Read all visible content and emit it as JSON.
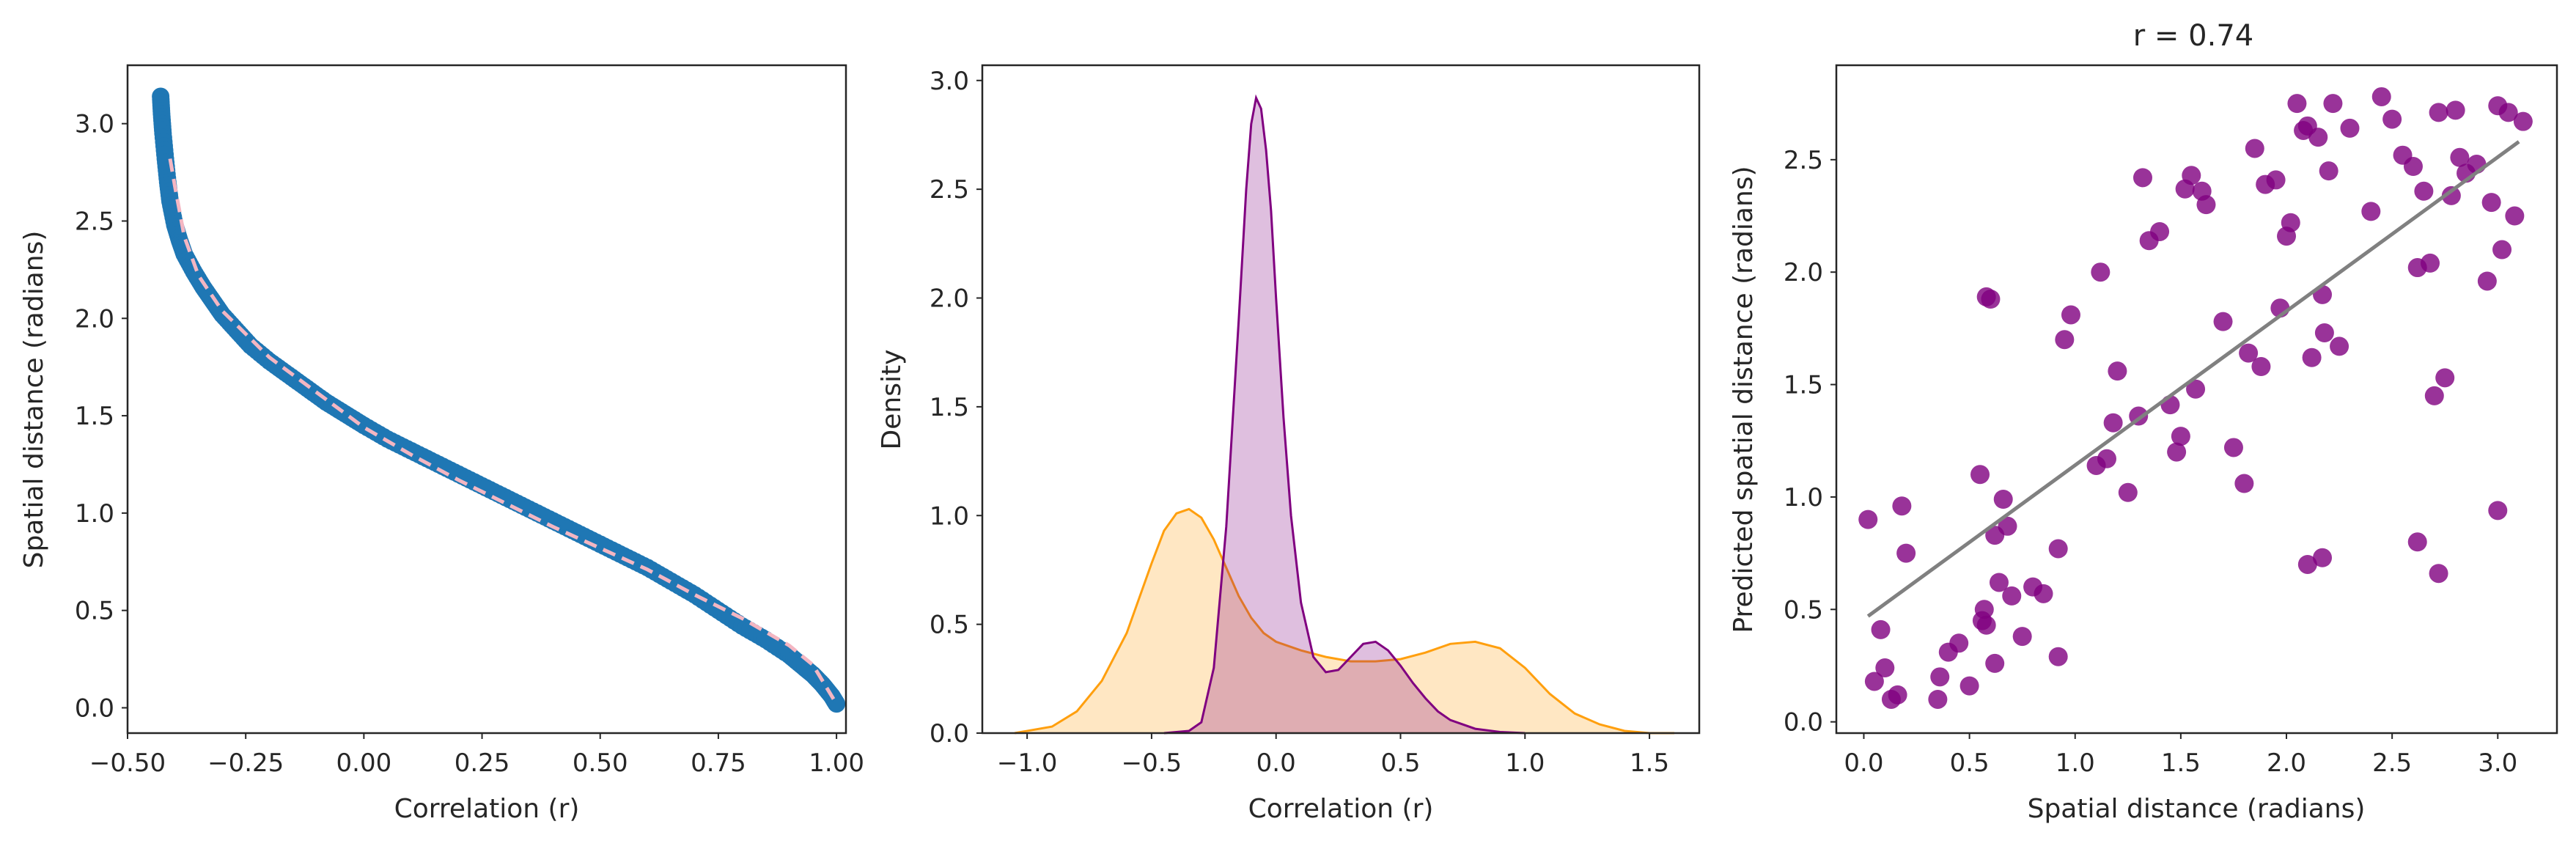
{
  "chart_data": [
    {
      "type": "scatter",
      "title": "",
      "xlabel": "Correlation (r)",
      "ylabel": "Spatial distance (radians)",
      "xlim": [
        -0.5,
        1.02
      ],
      "ylim": [
        -0.13,
        3.3
      ],
      "xticks": [
        -0.5,
        -0.25,
        0.0,
        0.25,
        0.5,
        0.75,
        1.0
      ],
      "xtick_labels": [
        "−0.50",
        "−0.25",
        "0.00",
        "0.25",
        "0.50",
        "0.75",
        "1.00"
      ],
      "yticks": [
        0.0,
        0.5,
        1.0,
        1.5,
        2.0,
        2.5,
        3.0
      ],
      "ytick_labels": [
        "0.0",
        "0.5",
        "1.0",
        "1.5",
        "2.0",
        "2.5",
        "3.0"
      ],
      "grid": false,
      "series": [
        {
          "kind": "points",
          "color": "#1f77b4",
          "x": [
            -0.43,
            -0.428,
            -0.425,
            -0.42,
            -0.415,
            -0.41,
            -0.4,
            -0.39,
            -0.38,
            -0.36,
            -0.34,
            -0.32,
            -0.3,
            -0.27,
            -0.24,
            -0.2,
            -0.16,
            -0.12,
            -0.08,
            -0.04,
            0.0,
            0.05,
            0.1,
            0.15,
            0.2,
            0.25,
            0.3,
            0.35,
            0.4,
            0.45,
            0.5,
            0.55,
            0.6,
            0.65,
            0.7,
            0.75,
            0.8,
            0.85,
            0.9,
            0.93,
            0.95,
            0.97,
            0.98,
            0.99,
            0.995,
            1.0
          ],
          "y": [
            3.14,
            3.05,
            2.95,
            2.82,
            2.7,
            2.6,
            2.48,
            2.4,
            2.33,
            2.24,
            2.16,
            2.09,
            2.02,
            1.94,
            1.86,
            1.78,
            1.71,
            1.64,
            1.57,
            1.51,
            1.45,
            1.38,
            1.32,
            1.26,
            1.2,
            1.14,
            1.08,
            1.02,
            0.96,
            0.9,
            0.84,
            0.78,
            0.72,
            0.65,
            0.58,
            0.5,
            0.42,
            0.35,
            0.27,
            0.21,
            0.17,
            0.12,
            0.09,
            0.06,
            0.04,
            0.02
          ]
        },
        {
          "kind": "dashed-line",
          "color": "#f4b6c2",
          "x": [
            -0.41,
            -0.4,
            -0.38,
            -0.35,
            -0.3,
            -0.25,
            -0.2,
            -0.1,
            0.0,
            0.1,
            0.2,
            0.3,
            0.4,
            0.5,
            0.6,
            0.7,
            0.8,
            0.9,
            0.95,
            1.0
          ],
          "y": [
            2.82,
            2.68,
            2.42,
            2.22,
            2.04,
            1.92,
            1.8,
            1.62,
            1.44,
            1.3,
            1.17,
            1.05,
            0.93,
            0.82,
            0.71,
            0.58,
            0.46,
            0.32,
            0.22,
            0.02
          ]
        }
      ]
    },
    {
      "type": "area",
      "title": "",
      "xlabel": "Correlation (r)",
      "ylabel": "Density",
      "xlim": [
        -1.18,
        1.7
      ],
      "ylim": [
        0.0,
        3.07
      ],
      "xticks": [
        -1.0,
        -0.5,
        0.0,
        0.5,
        1.0,
        1.5
      ],
      "xtick_labels": [
        "−1.0",
        "−0.5",
        "0.0",
        "0.5",
        "1.0",
        "1.5"
      ],
      "yticks": [
        0.0,
        0.5,
        1.0,
        1.5,
        2.0,
        2.5,
        3.0
      ],
      "ytick_labels": [
        "0.0",
        "0.5",
        "1.0",
        "1.5",
        "2.0",
        "2.5",
        "3.0"
      ],
      "grid": false,
      "series": [
        {
          "color": "#ff9f0e",
          "x": [
            -1.05,
            -0.9,
            -0.8,
            -0.7,
            -0.6,
            -0.5,
            -0.45,
            -0.4,
            -0.35,
            -0.3,
            -0.25,
            -0.2,
            -0.15,
            -0.1,
            -0.05,
            0.0,
            0.1,
            0.2,
            0.3,
            0.4,
            0.5,
            0.6,
            0.7,
            0.8,
            0.9,
            1.0,
            1.1,
            1.2,
            1.3,
            1.4,
            1.5,
            1.6
          ],
          "y": [
            0.0,
            0.03,
            0.1,
            0.24,
            0.46,
            0.78,
            0.93,
            1.01,
            1.03,
            0.99,
            0.89,
            0.76,
            0.63,
            0.53,
            0.46,
            0.42,
            0.38,
            0.35,
            0.33,
            0.33,
            0.34,
            0.37,
            0.41,
            0.42,
            0.39,
            0.3,
            0.18,
            0.09,
            0.04,
            0.01,
            0.0,
            0.0
          ]
        },
        {
          "color": "#800080",
          "x": [
            -0.45,
            -0.35,
            -0.3,
            -0.25,
            -0.2,
            -0.15,
            -0.12,
            -0.1,
            -0.08,
            -0.06,
            -0.04,
            -0.02,
            0.0,
            0.03,
            0.06,
            0.1,
            0.15,
            0.2,
            0.25,
            0.3,
            0.35,
            0.4,
            0.45,
            0.5,
            0.55,
            0.6,
            0.65,
            0.7,
            0.8,
            0.9,
            1.0
          ],
          "y": [
            0.0,
            0.01,
            0.05,
            0.3,
            0.95,
            1.9,
            2.5,
            2.8,
            2.92,
            2.87,
            2.68,
            2.4,
            2.0,
            1.45,
            1.0,
            0.6,
            0.35,
            0.28,
            0.29,
            0.35,
            0.41,
            0.42,
            0.38,
            0.31,
            0.23,
            0.16,
            0.1,
            0.06,
            0.02,
            0.005,
            0.0
          ]
        }
      ]
    },
    {
      "type": "scatter",
      "title": "r = 0.74",
      "xlabel": "Spatial distance (radians)",
      "ylabel": "Predicted spatial distance (radians)",
      "xlim": [
        -0.13,
        3.28
      ],
      "ylim": [
        -0.05,
        2.92
      ],
      "xticks": [
        0.0,
        0.5,
        1.0,
        1.5,
        2.0,
        2.5,
        3.0
      ],
      "xtick_labels": [
        "0.0",
        "0.5",
        "1.0",
        "1.5",
        "2.0",
        "2.5",
        "3.0"
      ],
      "yticks": [
        0.0,
        0.5,
        1.0,
        1.5,
        2.0,
        2.5
      ],
      "ytick_labels": [
        "0.0",
        "0.5",
        "1.0",
        "1.5",
        "2.0",
        "2.5"
      ],
      "grid": false,
      "points": {
        "color": "#800080",
        "x": [
          0.02,
          0.05,
          0.08,
          0.1,
          0.13,
          0.16,
          0.18,
          0.2,
          0.35,
          0.36,
          0.4,
          0.45,
          0.5,
          0.56,
          0.57,
          0.58,
          0.6,
          0.62,
          0.64,
          0.66,
          0.68,
          0.7,
          0.75,
          0.8,
          0.85,
          0.92,
          0.95,
          0.98,
          1.1,
          1.12,
          1.15,
          1.18,
          1.2,
          1.25,
          1.3,
          1.32,
          1.35,
          1.4,
          1.45,
          1.48,
          1.5,
          1.52,
          1.55,
          1.57,
          1.6,
          1.62,
          1.7,
          1.75,
          1.8,
          1.82,
          1.85,
          1.88,
          1.9,
          1.95,
          1.97,
          2.0,
          2.02,
          2.05,
          2.08,
          2.1,
          2.12,
          2.15,
          2.17,
          2.18,
          2.2,
          2.22,
          2.25,
          2.3,
          2.4,
          2.45,
          2.5,
          2.55,
          2.6,
          2.62,
          2.65,
          2.68,
          2.7,
          2.72,
          2.75,
          2.78,
          2.8,
          2.82,
          2.85,
          2.9,
          2.95,
          2.97,
          3.0,
          3.02,
          3.05,
          3.08,
          3.12,
          0.58,
          2.1,
          2.17,
          2.62,
          2.72,
          3.0,
          0.55,
          0.92,
          0.62
        ],
        "y": [
          0.9,
          0.18,
          0.41,
          0.24,
          0.1,
          0.12,
          0.96,
          0.75,
          0.1,
          0.2,
          0.31,
          0.35,
          0.16,
          0.45,
          0.5,
          0.43,
          1.88,
          0.83,
          0.62,
          0.99,
          0.87,
          0.56,
          0.38,
          0.6,
          0.57,
          0.77,
          1.7,
          1.81,
          1.14,
          2.0,
          1.17,
          1.33,
          1.56,
          1.02,
          1.36,
          2.42,
          2.14,
          2.18,
          1.41,
          1.2,
          1.27,
          2.37,
          2.43,
          1.48,
          2.36,
          2.3,
          1.78,
          1.22,
          1.06,
          1.64,
          2.55,
          1.58,
          2.39,
          2.41,
          1.84,
          2.16,
          2.22,
          2.75,
          2.63,
          2.65,
          1.62,
          2.6,
          1.9,
          1.73,
          2.45,
          2.75,
          1.67,
          2.64,
          2.27,
          2.78,
          2.68,
          2.52,
          2.47,
          2.02,
          2.36,
          2.04,
          1.45,
          2.71,
          1.53,
          2.34,
          2.72,
          2.51,
          2.44,
          2.48,
          1.96,
          2.31,
          2.74,
          2.1,
          2.71,
          2.25,
          2.67,
          1.89,
          0.7,
          0.73,
          0.8,
          0.66,
          0.94,
          1.1,
          0.29,
          0.26
        ]
      },
      "fit_line": {
        "color": "#808080",
        "x": [
          0.02,
          3.1
        ],
        "y": [
          0.47,
          2.58
        ]
      }
    }
  ]
}
